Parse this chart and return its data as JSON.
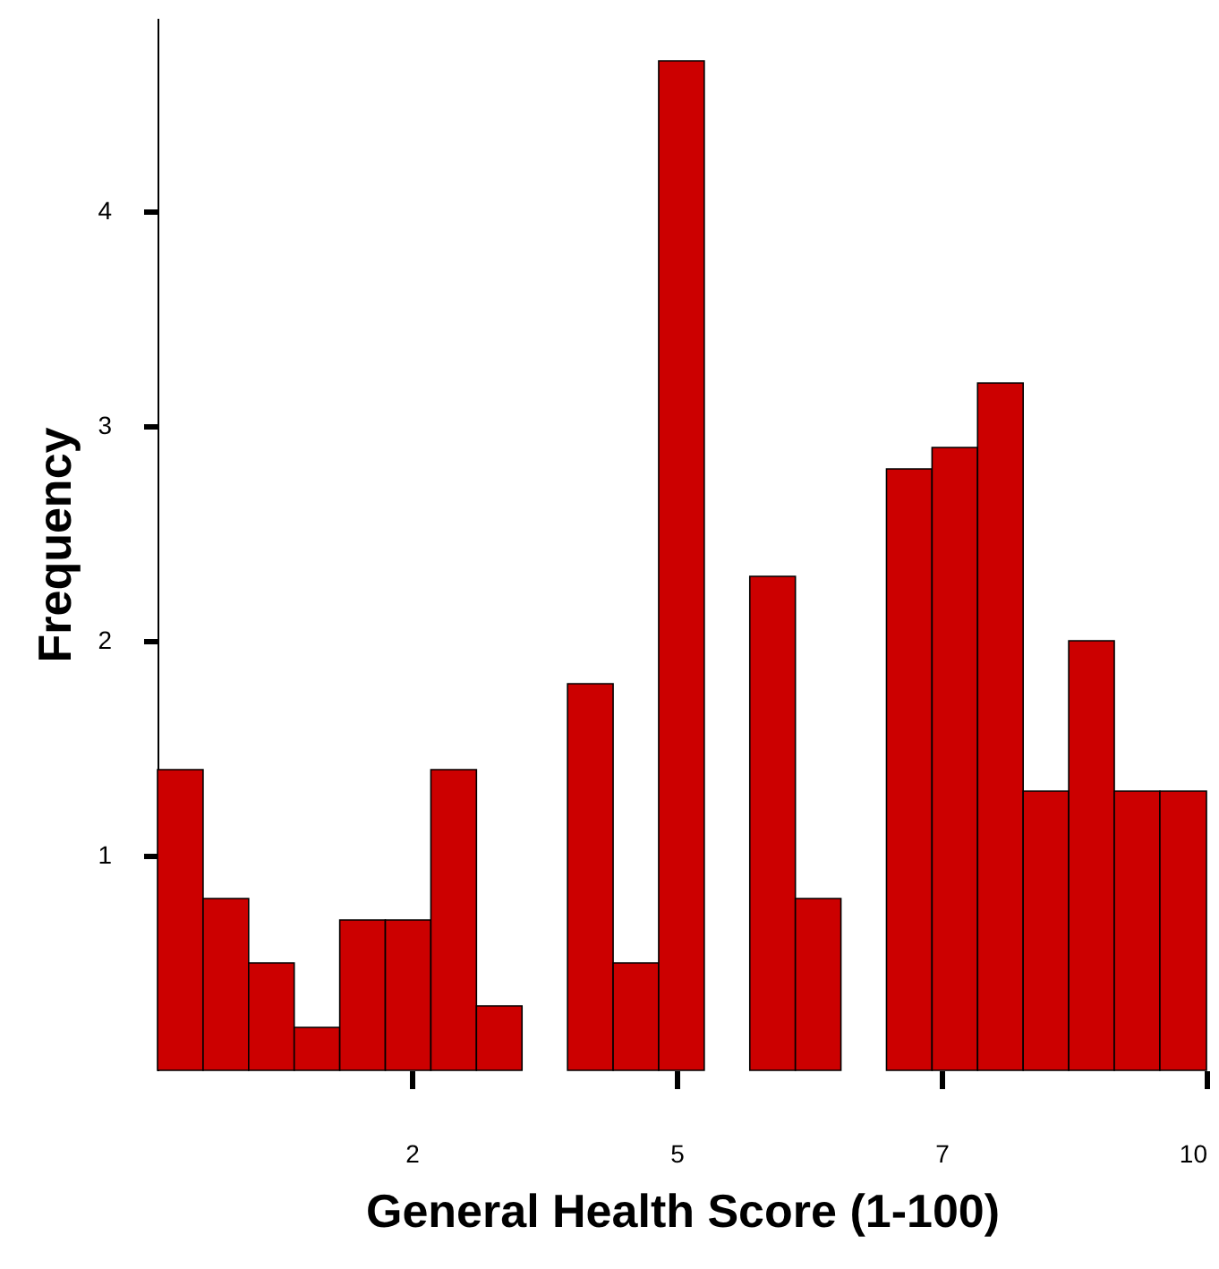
{
  "chart_data": {
    "type": "histogram",
    "xlabel": "General Health Score (1-100)",
    "ylabel": "Frequency",
    "bins": [
      0.1,
      0.53,
      0.96,
      1.39,
      1.82,
      2.25,
      2.68,
      3.11,
      3.54,
      3.97,
      4.4,
      4.83,
      5.26,
      5.69,
      6.12,
      6.55,
      6.98,
      7.41,
      7.84,
      8.27,
      8.7,
      9.13,
      9.56,
      10
    ],
    "values": [
      1.4,
      0.8,
      0.5,
      0.2,
      0.7,
      0.7,
      1.4,
      0.3,
      0,
      1.8,
      0.5,
      4.7,
      0,
      2.3,
      0.8,
      0,
      2.8,
      2.9,
      3.2,
      1.3,
      2.0,
      1.3,
      1.3
    ],
    "color": "#cc0000",
    "xlim": [
      0.1,
      10
    ],
    "xticks": [
      {
        "value": 2.5,
        "label": "2"
      },
      5,
      {
        "value": 7.5,
        "label": "7"
      },
      10
    ],
    "ylim": [
      0,
      4.9
    ],
    "yticks": [
      1,
      2,
      3,
      4
    ],
    "grid": false
  }
}
